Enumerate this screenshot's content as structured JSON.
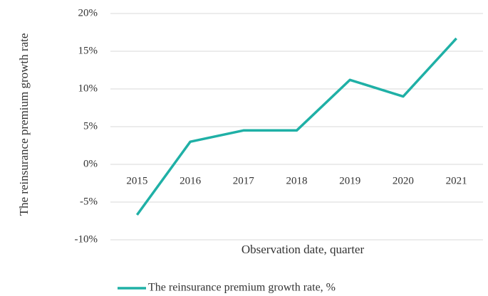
{
  "chart_data": {
    "type": "line",
    "x_label": "Observation date, quarter",
    "y_label": "The reinsurance premium growth rate",
    "categories": [
      "2015",
      "2016",
      "2017",
      "2018",
      "2019",
      "2020",
      "2021"
    ],
    "series": [
      {
        "name": "The reinsurance premium growth rate, %",
        "color": "#1fb0a6",
        "values": [
          -6.7,
          3.0,
          4.5,
          4.5,
          11.2,
          9.0,
          16.7
        ]
      }
    ],
    "ylim": [
      -10,
      20
    ],
    "yticks": [
      {
        "value": -10,
        "label": "-10%"
      },
      {
        "value": -5,
        "label": "-5%"
      },
      {
        "value": 0,
        "label": "0%"
      },
      {
        "value": 5,
        "label": "5%"
      },
      {
        "value": 10,
        "label": "10%"
      },
      {
        "value": 15,
        "label": "15%"
      },
      {
        "value": 20,
        "label": "20%"
      }
    ],
    "grid": true,
    "legend": "bottom"
  }
}
